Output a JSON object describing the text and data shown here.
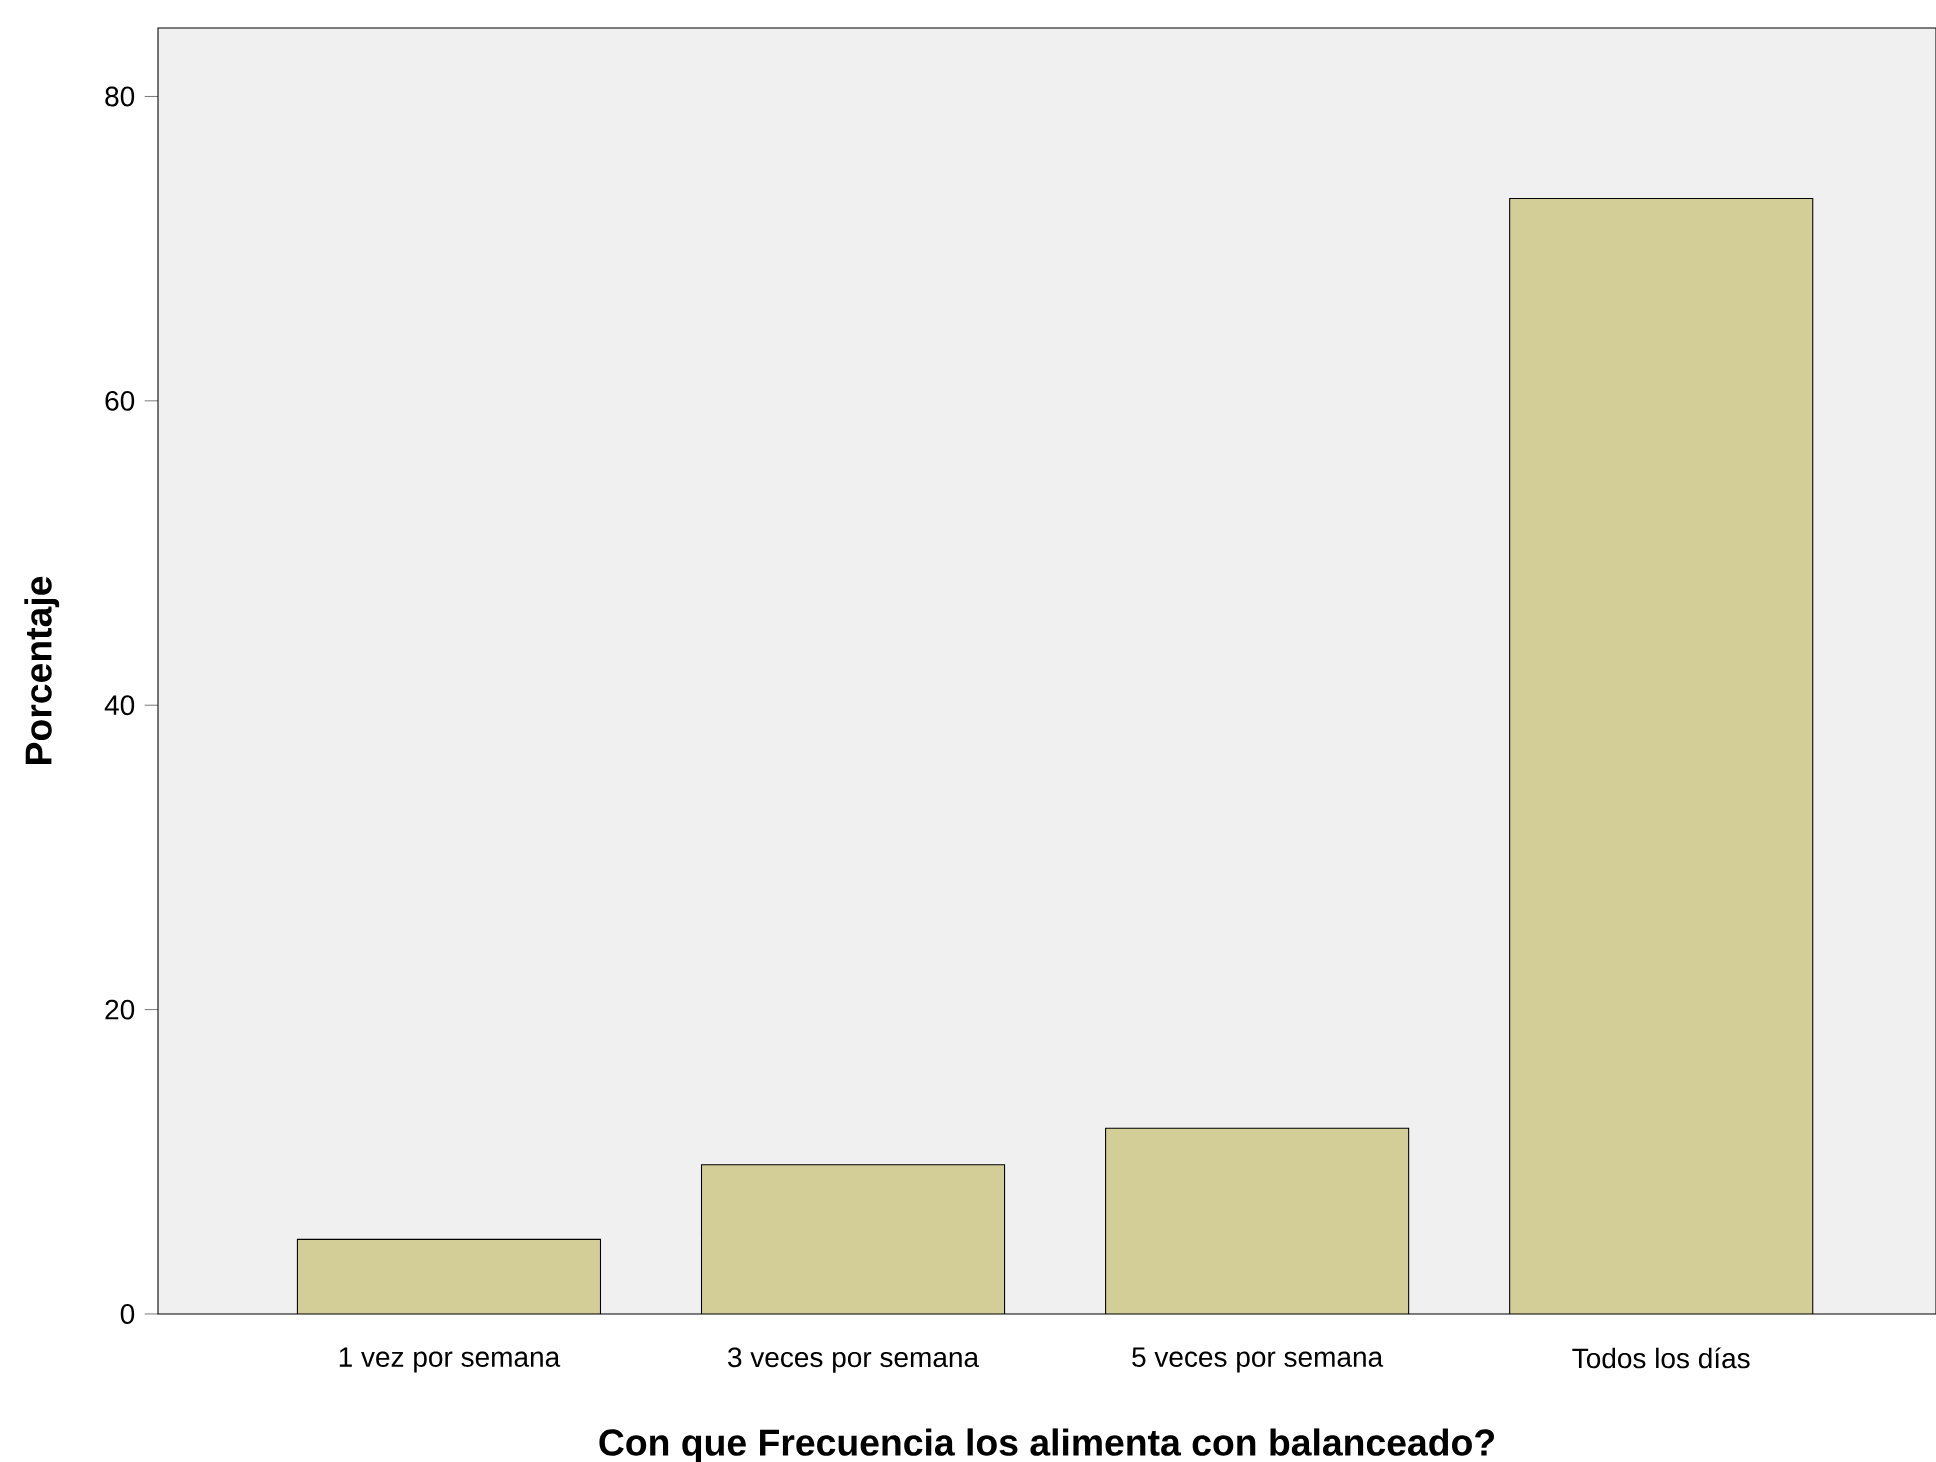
{
  "chart_data": {
    "type": "bar",
    "xlabel": "Con que Frecuencia los alimenta con balanceado?",
    "ylabel": "Porcentaje",
    "categories": [
      "1 vez por semana",
      "3 veces por semana",
      "5 veces por semana",
      "Todos los días"
    ],
    "values": [
      4.9,
      9.8,
      12.2,
      73.3
    ],
    "color": "#d3ce97",
    "ylim": [
      0,
      84.5
    ],
    "yticks": [
      0,
      20,
      40,
      60,
      80
    ]
  }
}
